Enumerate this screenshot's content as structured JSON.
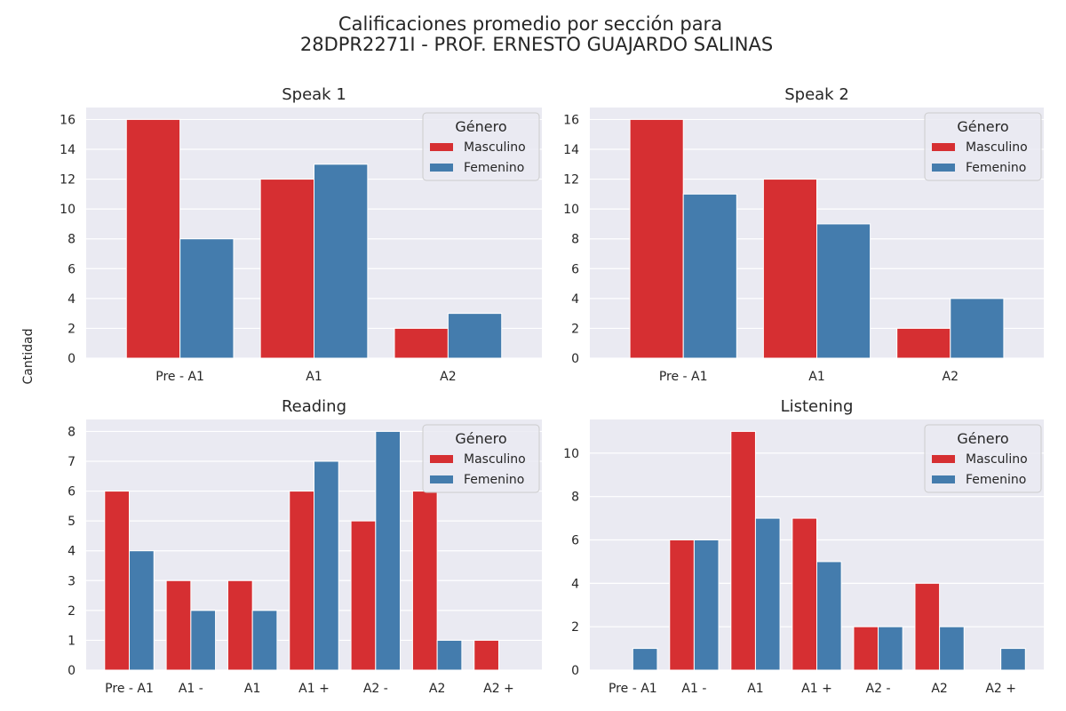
{
  "chart_data": {
    "title": "Calificaciones promedio por sección para",
    "title_line2": "28DPR2271I - PROF. ERNESTO GUAJARDO SALINAS",
    "ylabel": "Cantidad",
    "legend": {
      "title": "Género",
      "placement": "top-right"
    },
    "colors": {
      "Masculino": "#d62f32",
      "Femenino": "#447cad",
      "background": "#eaeaf2",
      "grid": "#ffffff"
    },
    "subplots": [
      {
        "type": "bar",
        "title": "Speak 1",
        "categories": [
          "Pre - A1",
          "A1",
          "A2"
        ],
        "series": [
          {
            "name": "Masculino",
            "values": [
              16,
              12,
              2
            ]
          },
          {
            "name": "Femenino",
            "values": [
              8,
              13,
              3
            ]
          }
        ],
        "ylim": [
          0,
          16.8
        ],
        "yticks": [
          0,
          2,
          4,
          6,
          8,
          10,
          12,
          14,
          16
        ],
        "grid": true
      },
      {
        "type": "bar",
        "title": "Speak 2",
        "categories": [
          "Pre - A1",
          "A1",
          "A2"
        ],
        "series": [
          {
            "name": "Masculino",
            "values": [
              16,
              12,
              2
            ]
          },
          {
            "name": "Femenino",
            "values": [
              11,
              9,
              4
            ]
          }
        ],
        "ylim": [
          0,
          16.8
        ],
        "yticks": [
          0,
          2,
          4,
          6,
          8,
          10,
          12,
          14,
          16
        ],
        "grid": true
      },
      {
        "type": "bar",
        "title": "Reading",
        "categories": [
          "Pre - A1",
          "A1 -",
          "A1",
          "A1 +",
          "A2 -",
          "A2",
          "A2 +"
        ],
        "series": [
          {
            "name": "Masculino",
            "values": [
              6,
              3,
              3,
              6,
              5,
              6,
              1
            ]
          },
          {
            "name": "Femenino",
            "values": [
              4,
              2,
              2,
              7,
              8,
              1,
              0
            ]
          }
        ],
        "ylim": [
          0,
          8.4
        ],
        "yticks": [
          0,
          1,
          2,
          3,
          4,
          5,
          6,
          7,
          8
        ],
        "grid": true
      },
      {
        "type": "bar",
        "title": "Listening",
        "categories": [
          "Pre - A1",
          "A1 -",
          "A1",
          "A1 +",
          "A2 -",
          "A2",
          "A2 +"
        ],
        "series": [
          {
            "name": "Masculino",
            "values": [
              0,
              6,
              11,
              7,
              2,
              4,
              0
            ]
          },
          {
            "name": "Femenino",
            "values": [
              1,
              6,
              7,
              5,
              2,
              2,
              1
            ]
          }
        ],
        "ylim": [
          0,
          11.55
        ],
        "yticks": [
          0,
          2,
          4,
          6,
          8,
          10
        ],
        "grid": true
      }
    ]
  }
}
